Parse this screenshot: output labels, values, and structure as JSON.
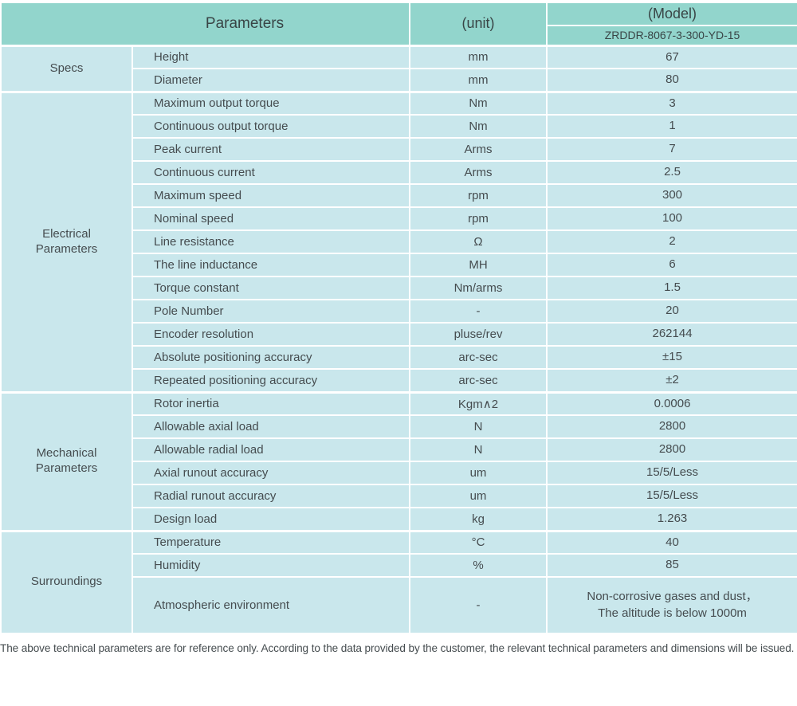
{
  "header": {
    "parameters_label": "Parameters",
    "unit_label": "(unit)",
    "model_label": "(Model)",
    "model_value": "ZRDDR-8067-3-300-YD-15"
  },
  "sections": [
    {
      "id": "specs",
      "group": "Specs",
      "rows": [
        {
          "param": "Height",
          "unit": "mm",
          "value": "67"
        },
        {
          "param": "Diameter",
          "unit": "mm",
          "value": "80"
        }
      ]
    },
    {
      "id": "electrical-parameters",
      "group": "Electrical\nParameters",
      "rows": [
        {
          "param": "Maximum output torque",
          "unit": "Nm",
          "value": "3"
        },
        {
          "param": "Continuous output torque",
          "unit": "Nm",
          "value": "1"
        },
        {
          "param": "Peak current",
          "unit": "Arms",
          "value": "7"
        },
        {
          "param": "Continuous current",
          "unit": "Arms",
          "value": "2.5"
        },
        {
          "param": "Maximum speed",
          "unit": "rpm",
          "value": "300"
        },
        {
          "param": "Nominal speed",
          "unit": "rpm",
          "value": "100"
        },
        {
          "param": "Line resistance",
          "unit": "Ω",
          "value": "2"
        },
        {
          "param": "The line inductance",
          "unit": "MH",
          "value": "6"
        },
        {
          "param": "Torque constant",
          "unit": "Nm/arms",
          "value": "1.5"
        },
        {
          "param": "Pole Number",
          "unit": "-",
          "value": "20"
        },
        {
          "param": "Encoder resolution",
          "unit": "pluse/rev",
          "value": "262144"
        },
        {
          "param": "Absolute positioning accuracy",
          "unit": "arc-sec",
          "value": "±15"
        },
        {
          "param": "Repeated positioning accuracy",
          "unit": "arc-sec",
          "value": "±2"
        }
      ]
    },
    {
      "id": "mechanical-parameters",
      "group": "Mechanical\nParameters",
      "rows": [
        {
          "param": "Rotor inertia",
          "unit": "Kgm∧2",
          "value": "0.0006"
        },
        {
          "param": "Allowable axial load",
          "unit": "N",
          "value": "2800"
        },
        {
          "param": "Allowable radial load",
          "unit": "N",
          "value": "2800"
        },
        {
          "param": "Axial runout accuracy",
          "unit": "um",
          "value": "15/5/Less"
        },
        {
          "param": "Radial runout accuracy",
          "unit": "um",
          "value": "15/5/Less"
        },
        {
          "param": "Design load",
          "unit": "kg",
          "value": "1.263"
        }
      ]
    },
    {
      "id": "surroundings",
      "group": "Surroundings",
      "rows": [
        {
          "param": "Temperature",
          "unit": "°C",
          "value": "40"
        },
        {
          "param": "Humidity",
          "unit": "%",
          "value": "85"
        },
        {
          "param": "Atmospheric environment",
          "unit": "-",
          "value": "Non-corrosive gases and dust，\nThe altitude is below 1000m",
          "tall": true
        }
      ]
    }
  ],
  "footer": {
    "note": "The above technical parameters are for reference only. According to the data provided by the customer, the relevant technical parameters and dimensions will be issued."
  },
  "colors": {
    "header_bg": "#92d5cc",
    "row_bg": "#c9e7ec",
    "border": "#ffffff",
    "text": "#454c4f"
  }
}
